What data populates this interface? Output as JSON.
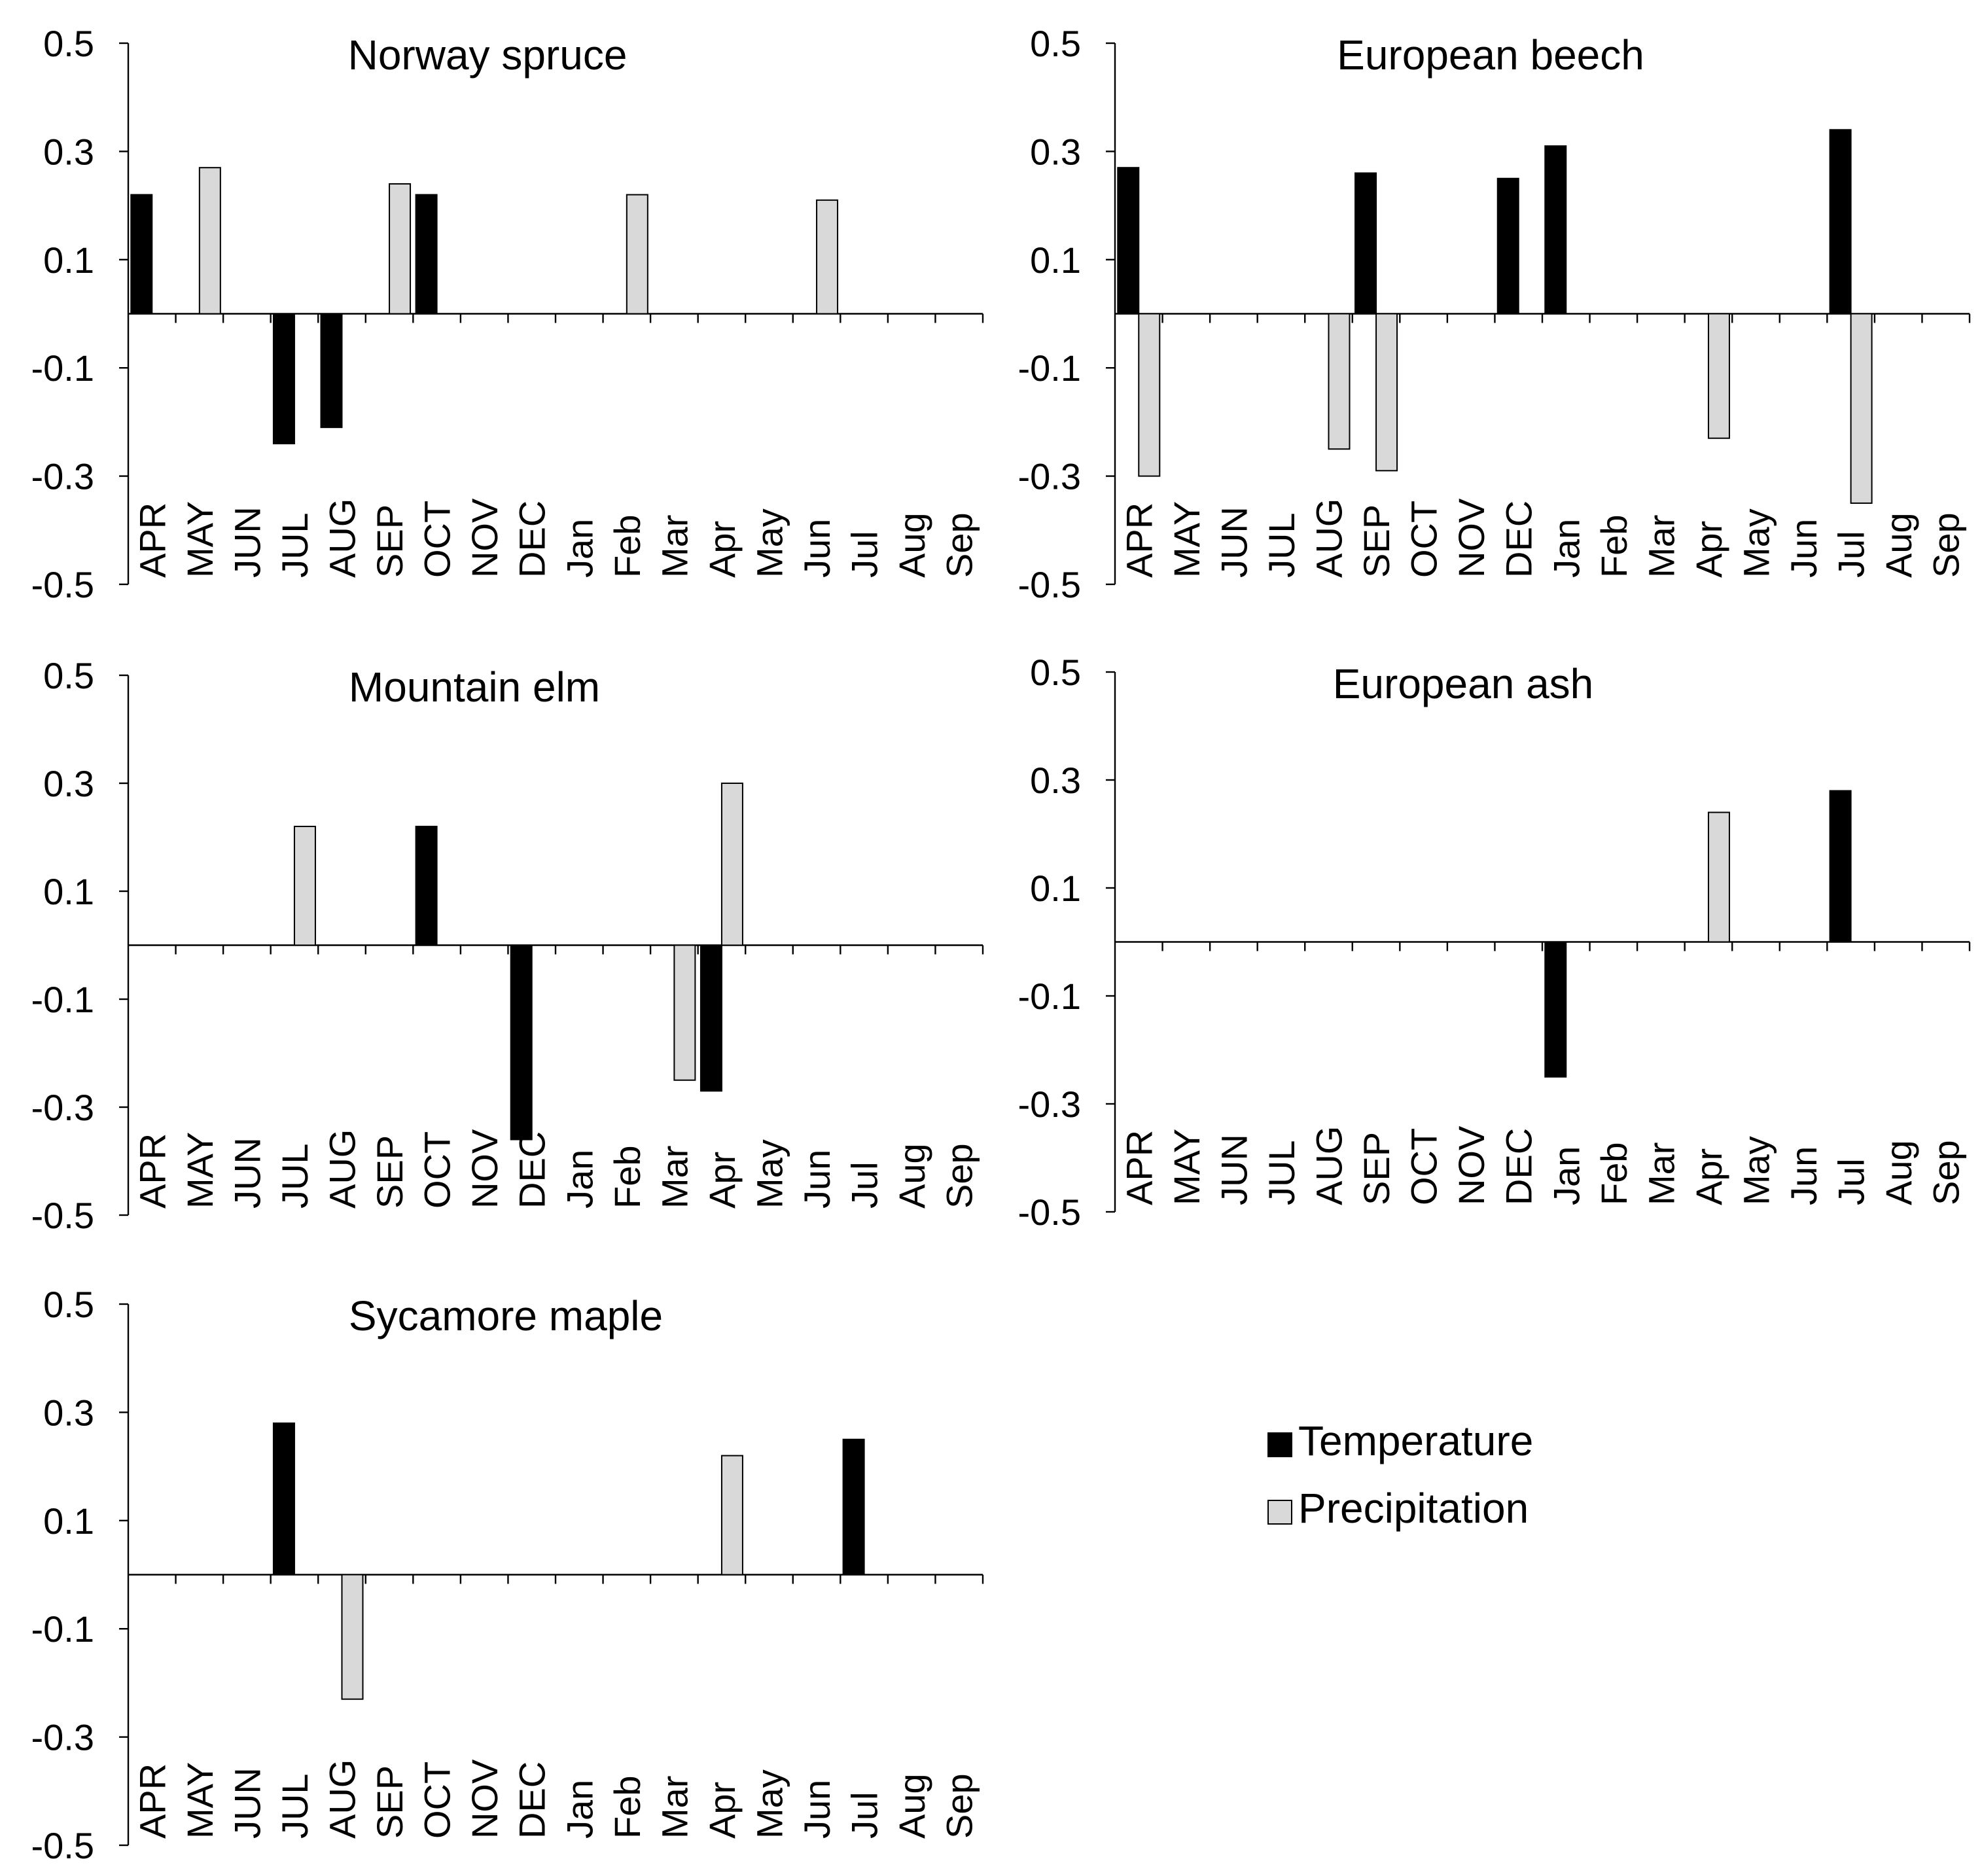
{
  "chart_data": [
    {
      "type": "bar",
      "title": "Norway spruce",
      "categories": [
        "APR",
        "MAY",
        "JUN",
        "JUL",
        "AUG",
        "SEP",
        "OCT",
        "NOV",
        "DEC",
        "Jan",
        "Feb",
        "Mar",
        "Apr",
        "May",
        "Jun",
        "Jul",
        "Aug",
        "Sep"
      ],
      "ylim": [
        -0.5,
        0.5
      ],
      "yticks": [
        "0.5",
        "0.3",
        "0.1",
        "-0.1",
        "-0.3",
        "-0.5"
      ],
      "series": [
        {
          "name": "Temperature",
          "color": "#000000",
          "values": [
            0.22,
            0,
            0,
            -0.24,
            -0.21,
            0,
            0.22,
            0,
            0,
            0,
            0,
            0,
            0,
            0,
            0,
            0,
            0,
            0
          ]
        },
        {
          "name": "Precipitation",
          "color": "#d9d9d9",
          "values": [
            0,
            0.27,
            0,
            0,
            0,
            0.24,
            0,
            0,
            0,
            0,
            0.22,
            0,
            0,
            0,
            0.21,
            0,
            0,
            0
          ]
        }
      ]
    },
    {
      "type": "bar",
      "title": "European beech",
      "categories": [
        "APR",
        "MAY",
        "JUN",
        "JUL",
        "AUG",
        "SEP",
        "OCT",
        "NOV",
        "DEC",
        "Jan",
        "Feb",
        "Mar",
        "Apr",
        "May",
        "Jun",
        "Jul",
        "Aug",
        "Sep"
      ],
      "ylim": [
        -0.5,
        0.5
      ],
      "yticks": [
        "0.5",
        "0.3",
        "0.1",
        "-0.1",
        "-0.3",
        "-0.5"
      ],
      "series": [
        {
          "name": "Temperature",
          "color": "#000000",
          "values": [
            0.27,
            0,
            0,
            0,
            0,
            0.26,
            0,
            0,
            0.25,
            0.31,
            0,
            0,
            0,
            0,
            0,
            0.34,
            0,
            0
          ]
        },
        {
          "name": "Precipitation",
          "color": "#d9d9d9",
          "values": [
            -0.3,
            0,
            0,
            0,
            -0.25,
            -0.29,
            0,
            0,
            0,
            0,
            0,
            0,
            -0.23,
            0,
            0,
            -0.35,
            0,
            0
          ]
        }
      ]
    },
    {
      "type": "bar",
      "title": "Mountain elm",
      "categories": [
        "APR",
        "MAY",
        "JUN",
        "JUL",
        "AUG",
        "SEP",
        "OCT",
        "NOV",
        "DEC",
        "Jan",
        "Feb",
        "Mar",
        "Apr",
        "May",
        "Jun",
        "Jul",
        "Aug",
        "Sep"
      ],
      "ylim": [
        -0.5,
        0.5
      ],
      "yticks": [
        "0.5",
        "0.3",
        "0.1",
        "-0.1",
        "-0.3",
        "-0.5"
      ],
      "series": [
        {
          "name": "Temperature",
          "color": "#000000",
          "values": [
            0,
            0,
            0,
            0,
            0,
            0,
            0.22,
            0,
            -0.36,
            0,
            0,
            0,
            -0.27,
            0,
            0,
            0,
            0,
            0
          ]
        },
        {
          "name": "Precipitation",
          "color": "#d9d9d9",
          "values": [
            0,
            0,
            0,
            0.22,
            0,
            0,
            0,
            0,
            0,
            0,
            0,
            -0.25,
            0.3,
            0,
            0,
            0,
            0,
            0
          ]
        }
      ]
    },
    {
      "type": "bar",
      "title": "European ash",
      "categories": [
        "APR",
        "MAY",
        "JUN",
        "JUL",
        "AUG",
        "SEP",
        "OCT",
        "NOV",
        "DEC",
        "Jan",
        "Feb",
        "Mar",
        "Apr",
        "May",
        "Jun",
        "Jul",
        "Aug",
        "Sep"
      ],
      "ylim": [
        -0.5,
        0.5
      ],
      "yticks": [
        "0.5",
        "0.3",
        "0.1",
        "-0.1",
        "-0.3",
        "-0.5"
      ],
      "series": [
        {
          "name": "Temperature",
          "color": "#000000",
          "values": [
            0,
            0,
            0,
            0,
            0,
            0,
            0,
            0,
            0,
            -0.25,
            0,
            0,
            0,
            0,
            0,
            0.28,
            0,
            0
          ]
        },
        {
          "name": "Precipitation",
          "color": "#d9d9d9",
          "values": [
            0,
            0,
            0,
            0,
            0,
            0,
            0,
            0,
            0,
            0,
            0,
            0,
            0.24,
            0,
            0,
            0,
            0,
            0
          ]
        }
      ]
    },
    {
      "type": "bar",
      "title": "Sycamore maple",
      "categories": [
        "APR",
        "MAY",
        "JUN",
        "JUL",
        "AUG",
        "SEP",
        "OCT",
        "NOV",
        "DEC",
        "Jan",
        "Feb",
        "Mar",
        "Apr",
        "May",
        "Jun",
        "Jul",
        "Aug",
        "Sep"
      ],
      "ylim": [
        -0.5,
        0.5
      ],
      "yticks": [
        "0.5",
        "0.3",
        "0.1",
        "-0.1",
        "-0.3",
        "-0.5"
      ],
      "series": [
        {
          "name": "Temperature",
          "color": "#000000",
          "values": [
            0,
            0,
            0,
            0.28,
            0,
            0,
            0,
            0,
            0,
            0,
            0,
            0,
            0,
            0,
            0,
            0.25,
            0,
            0
          ]
        },
        {
          "name": "Precipitation",
          "color": "#d9d9d9",
          "values": [
            0,
            0,
            0,
            0,
            -0.23,
            0,
            0,
            0,
            0,
            0,
            0,
            0,
            0.22,
            0,
            0,
            0,
            0,
            0
          ]
        }
      ]
    }
  ],
  "legend": {
    "placement": "right of bottom-left panel",
    "items": [
      {
        "label": "Temperature",
        "color": "#000000"
      },
      {
        "label": "Precipitation",
        "color": "#d9d9d9"
      }
    ]
  }
}
